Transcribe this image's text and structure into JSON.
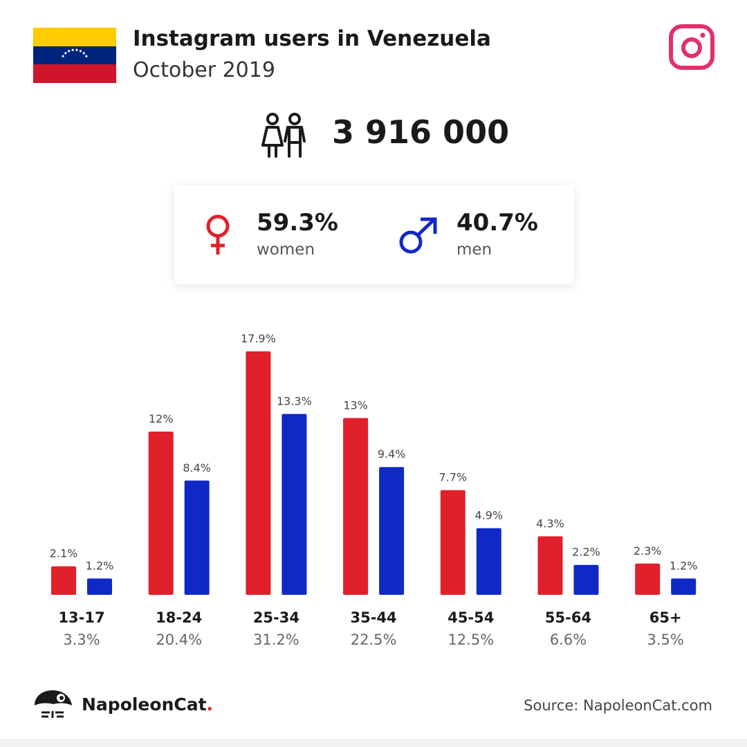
{
  "header": {
    "title": "Instagram users in Venezuela",
    "subtitle": "October 2019"
  },
  "total_users": "3 916 000",
  "gender": {
    "women": {
      "pct": "59.3%",
      "label": "women",
      "color": "#e0202a"
    },
    "men": {
      "pct": "40.7%",
      "label": "men",
      "color": "#1029c5"
    }
  },
  "chart_data": {
    "type": "bar",
    "categories": [
      "13-17",
      "18-24",
      "25-34",
      "35-44",
      "45-54",
      "55-64",
      "65+"
    ],
    "series": [
      {
        "values": [
          2.1,
          12,
          17.9,
          13,
          7.7,
          4.3,
          2.3
        ],
        "labels": [
          "2.1%",
          "12%",
          "17.9%",
          "13%",
          "7.7%",
          "4.3%",
          "2.3%"
        ],
        "color": "#e0202a"
      },
      {
        "values": [
          1.2,
          8.4,
          13.3,
          9.4,
          4.9,
          2.2,
          1.2
        ],
        "labels": [
          "1.2%",
          "8.4%",
          "13.3%",
          "9.4%",
          "4.9%",
          "2.2%",
          "1.2%"
        ],
        "color": "#1029c5"
      }
    ],
    "category_totals": [
      "3.3%",
      "20.4%",
      "31.2%",
      "22.5%",
      "12.5%",
      "6.6%",
      "3.5%"
    ],
    "ylim": [
      0,
      17.9
    ],
    "grid": false,
    "legend": "none"
  },
  "footer": {
    "brand_name": "NapoleonCat",
    "brand_dot": ".",
    "source": "Source: NapoleonCat.com"
  },
  "colors": {
    "flag_yellow": "#ffcc00",
    "flag_blue": "#00247d",
    "flag_red": "#cf142b",
    "instagram": "#e1306c"
  },
  "icons": {
    "flag": "venezuela-flag-icon",
    "instagram": "instagram-icon",
    "people": "people-icon",
    "female": "female-symbol-icon",
    "male": "male-symbol-icon",
    "brand": "napoleoncat-logo-icon"
  }
}
